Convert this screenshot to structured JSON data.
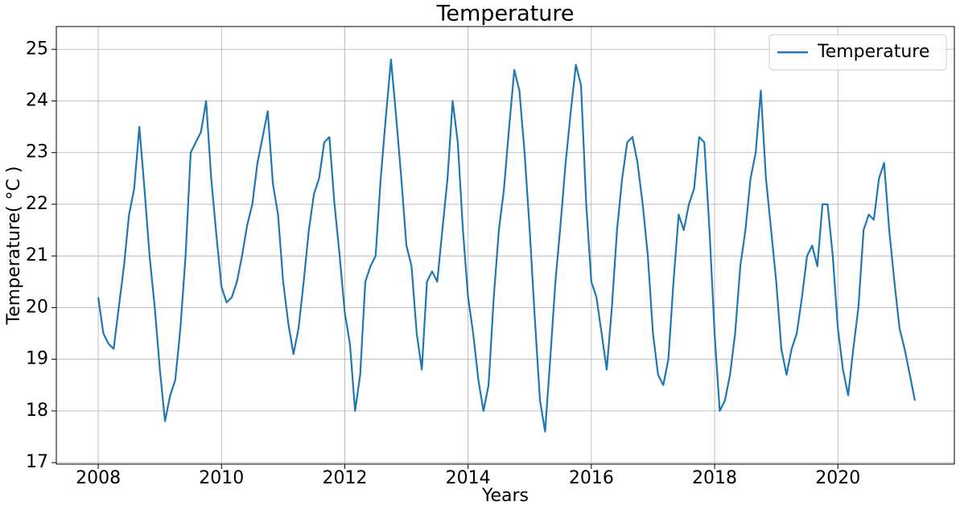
{
  "chart_data": {
    "type": "line",
    "title": "Temperature",
    "xlabel": "Years",
    "ylabel": "Temperature( °C )",
    "x": [
      2008,
      2008.083,
      2008.167,
      2008.25,
      2008.333,
      2008.417,
      2008.5,
      2008.583,
      2008.667,
      2008.75,
      2008.833,
      2008.917,
      2009,
      2009.083,
      2009.167,
      2009.25,
      2009.333,
      2009.417,
      2009.5,
      2009.583,
      2009.667,
      2009.75,
      2009.833,
      2009.917,
      2010,
      2010.083,
      2010.167,
      2010.25,
      2010.333,
      2010.417,
      2010.5,
      2010.583,
      2010.667,
      2010.75,
      2010.833,
      2010.917,
      2011,
      2011.083,
      2011.167,
      2011.25,
      2011.333,
      2011.417,
      2011.5,
      2011.583,
      2011.667,
      2011.75,
      2011.833,
      2011.917,
      2012,
      2012.083,
      2012.167,
      2012.25,
      2012.333,
      2012.417,
      2012.5,
      2012.583,
      2012.667,
      2012.75,
      2012.833,
      2012.917,
      2013,
      2013.083,
      2013.167,
      2013.25,
      2013.333,
      2013.417,
      2013.5,
      2013.583,
      2013.667,
      2013.75,
      2013.833,
      2013.917,
      2014,
      2014.083,
      2014.167,
      2014.25,
      2014.333,
      2014.417,
      2014.5,
      2014.583,
      2014.667,
      2014.75,
      2014.833,
      2014.917,
      2015,
      2015.083,
      2015.167,
      2015.25,
      2015.333,
      2015.417,
      2015.5,
      2015.583,
      2015.667,
      2015.75,
      2015.833,
      2015.917,
      2016,
      2016.083,
      2016.167,
      2016.25,
      2016.333,
      2016.417,
      2016.5,
      2016.583,
      2016.667,
      2016.75,
      2016.833,
      2016.917,
      2017,
      2017.083,
      2017.167,
      2017.25,
      2017.333,
      2017.417,
      2017.5,
      2017.583,
      2017.667,
      2017.75,
      2017.833,
      2017.917,
      2018,
      2018.083,
      2018.167,
      2018.25,
      2018.333,
      2018.417,
      2018.5,
      2018.583,
      2018.667,
      2018.75,
      2018.833,
      2018.917,
      2019,
      2019.083,
      2019.167,
      2019.25,
      2019.333,
      2019.417,
      2019.5,
      2019.583,
      2019.667,
      2019.75,
      2019.833,
      2019.917,
      2020,
      2020.083,
      2020.167,
      2020.25,
      2020.333,
      2020.417,
      2020.5,
      2020.583,
      2020.667,
      2020.75,
      2020.833,
      2020.917,
      2021,
      2021.083,
      2021.167,
      2021.25
    ],
    "series": [
      {
        "name": "Temperature",
        "color": "#1f77b4",
        "values": [
          20.2,
          19.5,
          19.3,
          19.2,
          20,
          20.8,
          21.8,
          22.3,
          23.5,
          22.3,
          21,
          20,
          18.8,
          17.8,
          18.3,
          18.6,
          19.6,
          21,
          23,
          23.2,
          23.4,
          24,
          22.5,
          21.4,
          20.4,
          20.1,
          20.2,
          20.5,
          21,
          21.6,
          22,
          22.8,
          23.3,
          23.8,
          22.4,
          21.8,
          20.5,
          19.7,
          19.1,
          19.6,
          20.5,
          21.5,
          22.2,
          22.5,
          23.2,
          23.3,
          22,
          21,
          19.9,
          19.3,
          18,
          18.7,
          20.5,
          20.8,
          21,
          22.5,
          23.7,
          24.8,
          23.7,
          22.5,
          21.2,
          20.8,
          19.5,
          18.8,
          20.5,
          20.7,
          20.5,
          21.5,
          22.5,
          24,
          23.2,
          21.5,
          20.2,
          19.5,
          18.6,
          18,
          18.5,
          20.2,
          21.5,
          22.3,
          23.5,
          24.6,
          24.2,
          23,
          21.5,
          19.8,
          18.2,
          17.6,
          19,
          20.5,
          21.6,
          22.8,
          23.8,
          24.7,
          24.3,
          22,
          20.5,
          20.2,
          19.5,
          18.8,
          20,
          21.5,
          22.5,
          23.2,
          23.3,
          22.8,
          22,
          21,
          19.5,
          18.7,
          18.5,
          19,
          20.5,
          21.8,
          21.5,
          22,
          22.3,
          23.3,
          23.2,
          21.5,
          19.5,
          18,
          18.2,
          18.7,
          19.5,
          20.8,
          21.5,
          22.5,
          23,
          24.2,
          22.5,
          21.5,
          20.5,
          19.2,
          18.7,
          19.2,
          19.5,
          20.2,
          21,
          21.2,
          20.8,
          22,
          22,
          21,
          19.6,
          18.8,
          18.3,
          19.2,
          20,
          21.5,
          21.8,
          21.7,
          22.5,
          22.8,
          21.5,
          20.5,
          19.6,
          19.2,
          18.7,
          18.2
        ]
      }
    ],
    "xlim": [
      2007.32,
      2021.89
    ],
    "ylim": [
      16.97,
      25.44
    ],
    "xticks": [
      2008,
      2010,
      2012,
      2014,
      2016,
      2018,
      2020
    ],
    "yticks": [
      17,
      18,
      19,
      20,
      21,
      22,
      23,
      24,
      25
    ],
    "grid": true,
    "legend": "upper right"
  }
}
